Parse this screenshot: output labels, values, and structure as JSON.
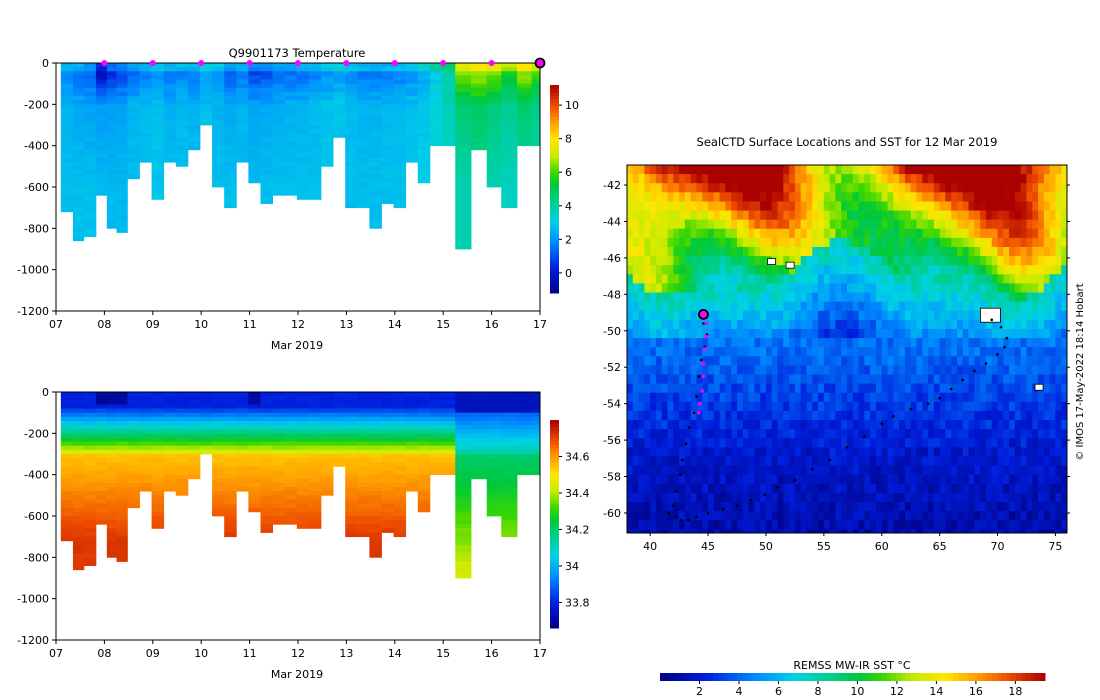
{
  "chart_data": [
    {
      "id": "temperature",
      "type": "heatmap",
      "title": "Q9901173  Temperature",
      "xlabel": "Mar 2019",
      "xticks": [
        "07",
        "08",
        "09",
        "10",
        "11",
        "12",
        "13",
        "14",
        "15",
        "16",
        "17"
      ],
      "xlim": [
        7,
        17
      ],
      "ylim": [
        -1200,
        0
      ],
      "yticks": [
        0,
        -200,
        -400,
        -600,
        -800,
        -1000,
        -1200
      ],
      "colorbar": {
        "range": [
          -1.2,
          11.2
        ],
        "ticks": [
          0,
          2,
          4,
          6,
          8,
          10
        ]
      },
      "marker_days": [
        8,
        9,
        10,
        11,
        12,
        13,
        14,
        15,
        16
      ],
      "last_marker_day": 17,
      "profiles": [
        {
          "t": 7.25,
          "depth": 710,
          "top": 1.8,
          "mid": 2.6,
          "deep": 2.8
        },
        {
          "t": 7.45,
          "depth": 850,
          "top": 1.5,
          "mid": 2.4,
          "deep": 2.8
        },
        {
          "t": 7.7,
          "depth": 835,
          "top": 1.2,
          "mid": 2.3,
          "deep": 2.8
        },
        {
          "t": 7.95,
          "depth": 640,
          "top": -0.5,
          "mid": 2.2,
          "deep": 2.7
        },
        {
          "t": 8.15,
          "depth": 785,
          "top": 0.4,
          "mid": 2.2,
          "deep": 2.7
        },
        {
          "t": 8.35,
          "depth": 810,
          "top": 0.8,
          "mid": 2.3,
          "deep": 2.7
        },
        {
          "t": 8.6,
          "depth": 550,
          "top": 1.3,
          "mid": 2.6,
          "deep": 2.8
        },
        {
          "t": 8.85,
          "depth": 480,
          "top": 1.6,
          "mid": 2.7,
          "deep": 2.8
        },
        {
          "t": 9.1,
          "depth": 650,
          "top": 2.0,
          "mid": 2.8,
          "deep": 2.9
        },
        {
          "t": 9.35,
          "depth": 480,
          "top": 1.5,
          "mid": 2.6,
          "deep": 2.8
        },
        {
          "t": 9.6,
          "depth": 500,
          "top": 1.7,
          "mid": 2.7,
          "deep": 2.8
        },
        {
          "t": 9.85,
          "depth": 420,
          "top": 1.6,
          "mid": 2.6,
          "deep": 2.8
        },
        {
          "t": 10.1,
          "depth": 300,
          "top": 2.2,
          "mid": 2.8,
          "deep": 2.9
        },
        {
          "t": 10.35,
          "depth": 600,
          "top": 1.9,
          "mid": 2.6,
          "deep": 2.8
        },
        {
          "t": 10.6,
          "depth": 700,
          "top": 1.2,
          "mid": 2.4,
          "deep": 2.8
        },
        {
          "t": 10.85,
          "depth": 480,
          "top": 1.5,
          "mid": 2.6,
          "deep": 2.8
        },
        {
          "t": 11.1,
          "depth": 570,
          "top": 0.8,
          "mid": 2.3,
          "deep": 2.7
        },
        {
          "t": 11.35,
          "depth": 670,
          "top": 1.0,
          "mid": 2.4,
          "deep": 2.8
        },
        {
          "t": 11.6,
          "depth": 640,
          "top": 1.3,
          "mid": 2.5,
          "deep": 2.8
        },
        {
          "t": 11.85,
          "depth": 640,
          "top": 1.4,
          "mid": 2.6,
          "deep": 2.8
        },
        {
          "t": 12.1,
          "depth": 660,
          "top": 1.5,
          "mid": 2.6,
          "deep": 2.8
        },
        {
          "t": 12.35,
          "depth": 660,
          "top": 1.6,
          "mid": 2.7,
          "deep": 2.8
        },
        {
          "t": 12.6,
          "depth": 500,
          "top": 2.0,
          "mid": 2.8,
          "deep": 2.9
        },
        {
          "t": 12.85,
          "depth": 350,
          "top": 2.2,
          "mid": 2.9,
          "deep": 2.9
        },
        {
          "t": 13.1,
          "depth": 690,
          "top": 1.8,
          "mid": 2.7,
          "deep": 2.8
        },
        {
          "t": 13.35,
          "depth": 690,
          "top": 1.6,
          "mid": 2.6,
          "deep": 2.8
        },
        {
          "t": 13.6,
          "depth": 790,
          "top": 1.5,
          "mid": 2.6,
          "deep": 2.8
        },
        {
          "t": 13.85,
          "depth": 680,
          "top": 1.6,
          "mid": 2.7,
          "deep": 2.8
        },
        {
          "t": 14.1,
          "depth": 700,
          "top": 1.7,
          "mid": 2.7,
          "deep": 2.8
        },
        {
          "t": 14.35,
          "depth": 470,
          "top": 2.0,
          "mid": 2.8,
          "deep": 2.9
        },
        {
          "t": 14.6,
          "depth": 580,
          "top": 2.3,
          "mid": 2.9,
          "deep": 3.0
        },
        {
          "t": 14.85,
          "depth": 390,
          "top": 3.0,
          "mid": 3.3,
          "deep": 3.3
        },
        {
          "t": 15.1,
          "depth": 390,
          "top": 3.8,
          "mid": 3.7,
          "deep": 3.5
        },
        {
          "t": 15.4,
          "depth": 890,
          "top": 6.5,
          "mid": 4.6,
          "deep": 3.8
        },
        {
          "t": 15.75,
          "depth": 410,
          "top": 7.0,
          "mid": 4.8,
          "deep": 4.0
        },
        {
          "t": 16.05,
          "depth": 590,
          "top": 6.5,
          "mid": 4.5,
          "deep": 3.8
        },
        {
          "t": 16.35,
          "depth": 700,
          "top": 5.8,
          "mid": 4.2,
          "deep": 3.6
        },
        {
          "t": 16.7,
          "depth": 390,
          "top": 6.8,
          "mid": 4.6,
          "deep": 3.9
        },
        {
          "t": 16.95,
          "depth": 390,
          "top": 6.0,
          "mid": 4.3,
          "deep": 3.7
        }
      ]
    },
    {
      "id": "salinity",
      "type": "heatmap",
      "title": "",
      "xlabel": "Mar 2019",
      "xticks": [
        "07",
        "08",
        "09",
        "10",
        "11",
        "12",
        "13",
        "14",
        "15",
        "16",
        "17"
      ],
      "xlim": [
        7,
        17
      ],
      "ylim": [
        -1200,
        0
      ],
      "yticks": [
        0,
        -200,
        -400,
        -600,
        -800,
        -1000,
        -1200
      ],
      "colorbar": {
        "range": [
          33.66,
          34.8
        ],
        "ticks": [
          33.8,
          34,
          34.2,
          34.4,
          34.6
        ]
      },
      "note": "uses the same profile column layout as the temperature panel"
    },
    {
      "id": "sst_map",
      "type": "heatmap",
      "title": "SealCTD Surface Locations and SST for 12 Mar 2019",
      "xticks": [
        40,
        45,
        50,
        55,
        60,
        65,
        70,
        75
      ],
      "yticks": [
        -42,
        -44,
        -46,
        -48,
        -50,
        -52,
        -54,
        -56,
        -58,
        -60
      ],
      "xlim": [
        38,
        76
      ],
      "ylim": [
        -61.1,
        -40.9
      ],
      "colorbar": {
        "label": "REMSS MW-IR SST °C",
        "range": [
          0,
          19.5
        ],
        "ticks": [
          2,
          4,
          6,
          8,
          10,
          12,
          14,
          16,
          18
        ]
      },
      "seal_track_magenta": [
        [
          44.6,
          -49.1
        ],
        [
          44.9,
          -49.6
        ],
        [
          44.8,
          -50.3
        ],
        [
          44.7,
          -51.0
        ],
        [
          44.6,
          -51.8
        ],
        [
          44.6,
          -52.5
        ],
        [
          44.5,
          -53.3
        ],
        [
          44.3,
          -54.0
        ],
        [
          44.2,
          -54.5
        ]
      ],
      "seal_track_black": [
        [
          44.6,
          -49.1
        ],
        [
          44.6,
          -49.6
        ],
        [
          44.9,
          -50.2
        ],
        [
          44.7,
          -50.9
        ],
        [
          44.4,
          -51.6
        ],
        [
          44.2,
          -52.5
        ],
        [
          44.0,
          -53.6
        ],
        [
          43.8,
          -54.5
        ],
        [
          43.4,
          -55.3
        ],
        [
          43.1,
          -56.2
        ],
        [
          42.8,
          -57.1
        ],
        [
          42.6,
          -57.9
        ],
        [
          42.3,
          -58.8
        ],
        [
          42.0,
          -59.6
        ],
        [
          41.6,
          -60.0
        ],
        [
          42.2,
          -60.2
        ],
        [
          42.7,
          -60.4
        ],
        [
          43.3,
          -60.4
        ],
        [
          44.0,
          -60.2
        ],
        [
          45.0,
          -60.0
        ],
        [
          46.3,
          -59.8
        ],
        [
          47.5,
          -59.6
        ],
        [
          48.7,
          -59.3
        ],
        [
          49.9,
          -59.0
        ],
        [
          51.0,
          -58.6
        ],
        [
          52.5,
          -58.2
        ],
        [
          54.0,
          -57.6
        ],
        [
          55.5,
          -57.1
        ],
        [
          57.0,
          -56.4
        ],
        [
          58.5,
          -55.8
        ],
        [
          60.0,
          -55.1
        ],
        [
          61.0,
          -54.7
        ],
        [
          62.5,
          -54.3
        ],
        [
          64.0,
          -54.0
        ],
        [
          65.0,
          -53.7
        ],
        [
          66.0,
          -53.2
        ],
        [
          67.0,
          -52.7
        ],
        [
          68.0,
          -52.2
        ],
        [
          69.0,
          -51.8
        ],
        [
          70.0,
          -51.3
        ],
        [
          70.6,
          -50.9
        ],
        [
          70.8,
          -50.4
        ],
        [
          70.3,
          -49.8
        ],
        [
          69.5,
          -49.4
        ]
      ],
      "current_position": [
        44.6,
        -49.1
      ],
      "islands": [
        [
          50.4,
          -46.2
        ],
        [
          52.0,
          -46.4
        ],
        [
          73.5,
          -53.1
        ],
        [
          69.3,
          -49.2
        ]
      ]
    }
  ],
  "watermark": "© IMOS 17-May-2022 18:14 Hobart"
}
